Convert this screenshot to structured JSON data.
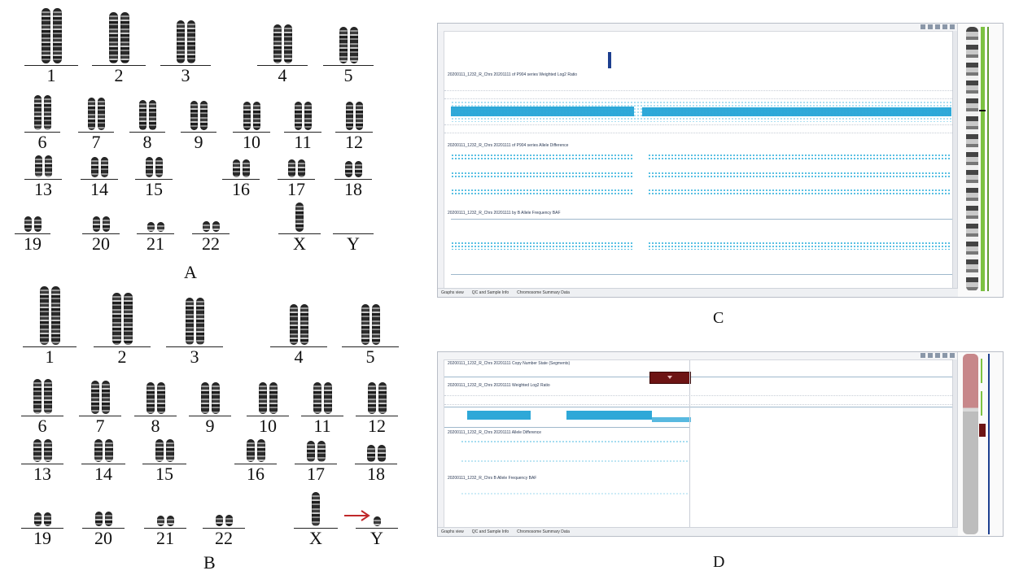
{
  "panel_a": {
    "letter": "A",
    "labels": [
      "1",
      "2",
      "3",
      "4",
      "5",
      "6",
      "7",
      "8",
      "9",
      "10",
      "11",
      "12",
      "13",
      "14",
      "15",
      "16",
      "17",
      "18",
      "19",
      "20",
      "21",
      "22",
      "X",
      "Y"
    ]
  },
  "panel_b": {
    "letter": "B",
    "labels": [
      "1",
      "2",
      "3",
      "4",
      "5",
      "6",
      "7",
      "8",
      "9",
      "10",
      "11",
      "12",
      "13",
      "14",
      "15",
      "16",
      "17",
      "18",
      "19",
      "20",
      "21",
      "22",
      "X",
      "Y"
    ],
    "arrow_color": "#c0282a"
  },
  "panel_c": {
    "letter": "C",
    "track_labels": [
      "20200111_1232_R_Chrs 20201111 of P904 series Weighted Log2 Ratio",
      "20200111_1232_R_Chrs 20201111 of P904 series Allele Difference",
      "20200111_1232_R_Chrs 20201111 by B Allele Frequency BAF"
    ],
    "tabs": [
      "Graphs view",
      "QC and Sample Info",
      "Chromosome Summary Data"
    ],
    "accent_color": "#2ea8d8"
  },
  "panel_d": {
    "letter": "D",
    "track_labels": [
      "20200111_1232_R_Chrs 20201111 Copy Number State (Segments)",
      "20200111_1232_R_Chrs 20201111 Weighted Log2 Ratio",
      "20200111_1232_R_Chrs 20201111 Allele Difference",
      "20200111_1232_R_Chrs B Allele Frequency BAF"
    ],
    "tabs": [
      "Graphs view",
      "QC and Sample Info",
      "Chromosome Summary Data"
    ],
    "segment_color": "#6d1414",
    "accent_color": "#2ea8d8"
  }
}
